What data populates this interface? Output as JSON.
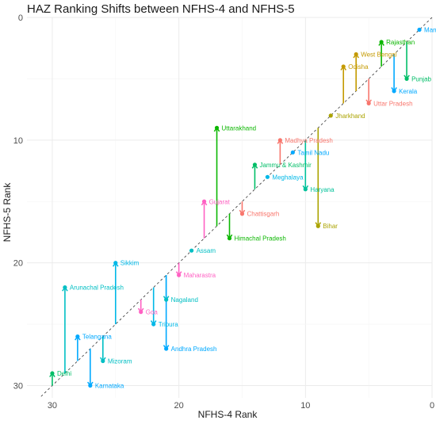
{
  "chart_data": {
    "type": "scatter",
    "title": "HAZ Ranking Shifts between NFHS-4 and NFHS-5",
    "xlabel": "NFHS-4 Rank",
    "ylabel": "NFHS-5 Rank",
    "x_reversed": true,
    "y_reversed": true,
    "xlim": [
      32,
      0
    ],
    "ylim": [
      0,
      31
    ],
    "x_ticks": [
      30,
      20,
      10,
      0
    ],
    "y_ticks": [
      0,
      10,
      20,
      30
    ],
    "grid": true,
    "reference_line": "dashed diagonal y = x",
    "legend": "none",
    "points": [
      {
        "state": "Manipur",
        "label": "Manipur",
        "x": 1,
        "y": 1,
        "color": "#00A9FF"
      },
      {
        "state": "Rajasthan",
        "label": "Rajasthan",
        "x": 4,
        "y": 2,
        "color": "#0CB702"
      },
      {
        "state": "Punjab",
        "label": "Punjab",
        "x": 2,
        "y": 5,
        "color": "#00BE67"
      },
      {
        "state": "Kerala",
        "label": "Kerala",
        "x": 3,
        "y": 6,
        "color": "#00A9FF"
      },
      {
        "state": "West Bengal",
        "label": "West Bengal",
        "x": 6,
        "y": 3,
        "color": "#C49A00"
      },
      {
        "state": "Uttar Pradesh",
        "label": "Uttar Pradesh",
        "x": 5,
        "y": 7,
        "color": "#F8766D"
      },
      {
        "state": "Odisha",
        "label": "Odisha",
        "x": 7,
        "y": 4,
        "color": "#C49A00"
      },
      {
        "state": "Jharkhand",
        "label": "Jharkhand",
        "x": 8,
        "y": 8,
        "color": "#ABA300"
      },
      {
        "state": "Bihar",
        "label": "Bihar",
        "x": 9,
        "y": 17,
        "color": "#ABA300"
      },
      {
        "state": "Haryana",
        "label": "Haryana",
        "x": 10,
        "y": 14,
        "color": "#00C19A"
      },
      {
        "state": "Tamil Nadu",
        "label": "Tamil Nadu",
        "x": 11,
        "y": 11,
        "color": "#00A9FF"
      },
      {
        "state": "Madhya Pradesh",
        "label": "Madhya Pradesh",
        "x": 12,
        "y": 10,
        "color": "#F8766D"
      },
      {
        "state": "Meghalaya",
        "label": "Meghalaya",
        "x": 13,
        "y": 13,
        "color": "#00B8E7"
      },
      {
        "state": "Jammu & Kashmir",
        "label": "Jammu & Kashmir",
        "x": 14,
        "y": 12,
        "color": "#00BE67"
      },
      {
        "state": "Chattisgarh",
        "label": "Chattisgarh",
        "x": 15,
        "y": 16,
        "color": "#F8766D"
      },
      {
        "state": "Himachal Pradesh",
        "label": "Himachal Pradesh",
        "x": 16,
        "y": 18,
        "color": "#0CB702"
      },
      {
        "state": "Uttarakhand",
        "label": "Uttarakhand",
        "x": 17,
        "y": 9,
        "color": "#0CB702"
      },
      {
        "state": "Gujarat",
        "label": "Gujarat",
        "x": 18,
        "y": 15,
        "color": "#FF61C3"
      },
      {
        "state": "Assam",
        "label": "Assam",
        "x": 19,
        "y": 19,
        "color": "#00BFC4"
      },
      {
        "state": "Maharastra",
        "label": "Maharastra",
        "x": 20,
        "y": 21,
        "color": "#FF61C3"
      },
      {
        "state": "Nagaland",
        "label": "Nagaland",
        "x": 21,
        "y": 23,
        "color": "#00BFC4"
      },
      {
        "state": "Andhra Pradesh",
        "label": "Andhra Pradesh",
        "x": 21,
        "y": 27,
        "color": "#00A9FF"
      },
      {
        "state": "Tripura",
        "label": "Tripura",
        "x": 22,
        "y": 25,
        "color": "#00B8E7"
      },
      {
        "state": "Goa",
        "label": "Goa",
        "x": 23,
        "y": 24,
        "color": "#FF61C3"
      },
      {
        "state": "Sikkim",
        "label": "Sikkim",
        "x": 25,
        "y": 20,
        "color": "#00B8E7"
      },
      {
        "state": "Mizoram",
        "label": "Mizoram",
        "x": 26,
        "y": 28,
        "color": "#00BFC4"
      },
      {
        "state": "Karnataka",
        "label": "Karnataka",
        "x": 27,
        "y": 30,
        "color": "#00A9FF"
      },
      {
        "state": "Telangana",
        "label": "Telangana",
        "x": 28,
        "y": 26,
        "color": "#00A9FF"
      },
      {
        "state": "Arunachal Pradesh",
        "label": "Arunachal Pradesh",
        "x": 29,
        "y": 22,
        "color": "#00BFC4"
      },
      {
        "state": "Delhi",
        "label": "Delhi",
        "x": 30,
        "y": 29,
        "color": "#00BE67"
      }
    ]
  }
}
